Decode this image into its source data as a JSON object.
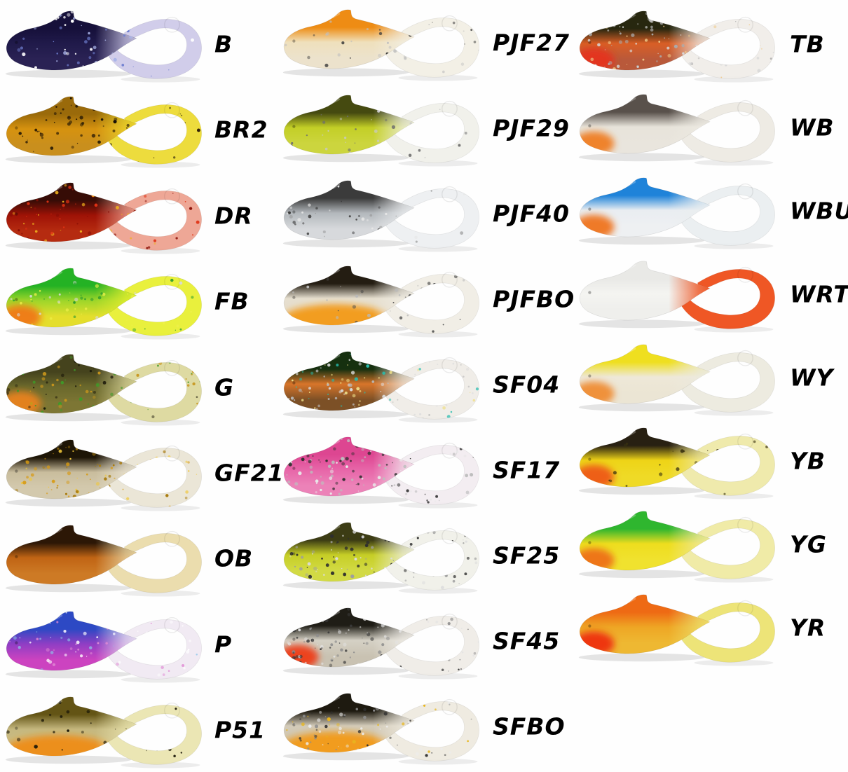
{
  "page": {
    "background": "#fefefe",
    "description": "Soft plastic curl-tail lure color chart"
  },
  "lures": [
    {
      "code": "B",
      "column": 1,
      "row": 0,
      "colors": {
        "back": "#16103a",
        "mid": "#201a4a",
        "belly": "#2a2254",
        "tail": "#cdc9e8"
      },
      "glitter": {
        "colors": [
          "#aab4e8",
          "#ffffff",
          "#6f7fd0"
        ],
        "body": 70,
        "tail": 40
      }
    },
    {
      "code": "BR2",
      "column": 1,
      "row": 1,
      "colors": {
        "back": "#9a6a0a",
        "mid": "#d6920f",
        "belly": "#c98f1d",
        "tail": "#ecd92e"
      },
      "glitter": {
        "colors": [
          "#2a1a06",
          "#171006"
        ],
        "body": 60,
        "tail": 18
      }
    },
    {
      "code": "DR",
      "column": 1,
      "row": 2,
      "colors": {
        "back": "#360c06",
        "mid": "#9e1206",
        "belly": "#b52b10",
        "tail": "#eda08e"
      },
      "glitter": {
        "colors": [
          "#e03214",
          "#efb31e",
          "#8a0f06"
        ],
        "body": 85,
        "tail": 55
      }
    },
    {
      "code": "FB",
      "column": 1,
      "row": 3,
      "colors": {
        "back": "#24b224",
        "mid": "#9ed62a",
        "belly": "#e4de2c",
        "tail": "#e7ef2e"
      },
      "patch": {
        "type": "chin",
        "color": "#ef7816"
      },
      "glitter": {
        "colors": [
          "#2f9e2f",
          "#d8d8d8",
          "#eef04a"
        ],
        "body": 70,
        "tail": 40
      }
    },
    {
      "code": "G",
      "column": 1,
      "row": 4,
      "colors": {
        "back": "#45431d",
        "mid": "#6a682c",
        "belly": "#7d7634",
        "tail": "#dcd79b"
      },
      "patch": {
        "type": "chin",
        "color": "#e8821c"
      },
      "glitter": {
        "colors": [
          "#3f9a28",
          "#c7951c",
          "#191608"
        ],
        "body": 95,
        "tail": 50
      }
    },
    {
      "code": "GF21",
      "column": 1,
      "row": 5,
      "colors": {
        "back": "#1d1506",
        "mid": "#c9bd9d",
        "belly": "#d3c9ad",
        "tail": "#eae4d4"
      },
      "glitter": {
        "colors": [
          "#d79a12",
          "#a87a0c",
          "#f0c73a"
        ],
        "body": 90,
        "tail": 45
      }
    },
    {
      "code": "OB",
      "column": 1,
      "row": 6,
      "colors": {
        "back": "#2c1706",
        "mid": "#c06414",
        "belly": "#cd7a25",
        "tail": "#e9daa8"
      },
      "glitter": {
        "colors": [],
        "body": 0,
        "tail": 0
      }
    },
    {
      "code": "P",
      "column": 1,
      "row": 7,
      "colors": {
        "back": "#2d49c4",
        "mid": "#8f3ec4",
        "belly": "#cc43c0",
        "tail": "#f0e8f2"
      },
      "glitter": {
        "colors": [
          "#e08ad4",
          "#8ec6ea",
          "#ffffff"
        ],
        "body": 60,
        "tail": 45
      }
    },
    {
      "code": "P51",
      "column": 1,
      "row": 8,
      "colors": {
        "back": "#635415",
        "mid": "#c5b87f",
        "belly": "#cdbd85",
        "tail": "#e9e4ae"
      },
      "patch": {
        "type": "belly",
        "color": "#ee8c16"
      },
      "glitter": {
        "colors": [
          "#1b1708"
        ],
        "body": 30,
        "tail": 16
      }
    },
    {
      "code": "PJF27",
      "column": 2,
      "row": 0,
      "colors": {
        "back": "#ee8c14",
        "mid": "#efe0bc",
        "belly": "#ece2cc",
        "tail": "#f2efe4"
      },
      "glitter": {
        "colors": [
          "#bfbfbf",
          "#3c3c3c"
        ],
        "body": 30,
        "tail": 20
      }
    },
    {
      "code": "PJF29",
      "column": 2,
      "row": 1,
      "colors": {
        "back": "#454a10",
        "mid": "#c3cf26",
        "belly": "#ccd53e",
        "tail": "#f0f0ea"
      },
      "glitter": {
        "colors": [
          "#c9c9c9",
          "#6e6e6e"
        ],
        "body": 40,
        "tail": 14
      }
    },
    {
      "code": "PJF40",
      "column": 2,
      "row": 2,
      "colors": {
        "back": "#3b3b3b",
        "mid": "#b3b8bc",
        "belly": "#d7d9dc",
        "tail": "#edeff1"
      },
      "glitter": {
        "colors": [
          "#8f8f8f",
          "#e6e6e6",
          "#3a3a3a"
        ],
        "body": 55,
        "tail": 30
      }
    },
    {
      "code": "PJFBO",
      "column": 2,
      "row": 3,
      "colors": {
        "back": "#241d12",
        "mid": "#e6dfcf",
        "belly": "#e6dccb",
        "tail": "#f0ede4"
      },
      "patch": {
        "type": "belly",
        "color": "#f29a14"
      },
      "glitter": {
        "colors": [
          "#b9b9b9",
          "#4a4a4a"
        ],
        "body": 35,
        "tail": 25
      }
    },
    {
      "code": "SF04",
      "column": 2,
      "row": 4,
      "colors": {
        "back": "#16300f",
        "mid": "#d8752a",
        "belly": "#7c5026",
        "tail": "#efece6"
      },
      "glitter": {
        "colors": [
          "#27bdae",
          "#dcdcdc",
          "#b9b9b9",
          "#efe08a"
        ],
        "body": 115,
        "tail": 70
      }
    },
    {
      "code": "SF17",
      "column": 2,
      "row": 5,
      "colors": {
        "back": "#dd4691",
        "mid": "#e765a8",
        "belly": "#ec82b8",
        "tail": "#f2ecf0"
      },
      "glitter": {
        "colors": [
          "#e8e8e8",
          "#bdbdbd",
          "#2e2e2e"
        ],
        "body": 115,
        "tail": 70
      }
    },
    {
      "code": "SF25",
      "column": 2,
      "row": 6,
      "colors": {
        "back": "#3c3c14",
        "mid": "#c6ce26",
        "belly": "#d2da44",
        "tail": "#f0f0e8"
      },
      "glitter": {
        "colors": [
          "#dcdcdc",
          "#9e9e9e",
          "#2e2e2e"
        ],
        "body": 100,
        "tail": 60
      }
    },
    {
      "code": "SF45",
      "column": 2,
      "row": 7,
      "colors": {
        "back": "#1f1d16",
        "mid": "#d5d1c5",
        "belly": "#c9c2b2",
        "tail": "#efece6"
      },
      "patch": {
        "type": "chin",
        "color": "#ee3b16"
      },
      "glitter": {
        "colors": [
          "#8c8c8c",
          "#3a3a3a",
          "#e3e3e3"
        ],
        "body": 110,
        "tail": 65
      }
    },
    {
      "code": "SFBO",
      "column": 2,
      "row": 8,
      "colors": {
        "back": "#1e1a10",
        "mid": "#d3cbb9",
        "belly": "#d0c5ae",
        "tail": "#eeeadf"
      },
      "patch": {
        "type": "belly",
        "color": "#f29a14"
      },
      "glitter": {
        "colors": [
          "#8c8c8c",
          "#2e2e2e",
          "#ececec",
          "#e8b61e"
        ],
        "body": 100,
        "tail": 60
      }
    },
    {
      "code": "TB",
      "column": 3,
      "row": 0,
      "colors": {
        "back": "#27270f",
        "mid": "#d95f26",
        "belly": "#b9593a",
        "tail": "#f0ede8"
      },
      "patch": {
        "type": "chin",
        "color": "#e5311c"
      },
      "glitter": {
        "colors": [
          "#d9d9d9",
          "#ababab",
          "#efc98a"
        ],
        "body": 90,
        "tail": 45
      }
    },
    {
      "code": "WB",
      "column": 3,
      "row": 1,
      "colors": {
        "back": "#59514b",
        "mid": "#e7e3da",
        "belly": "#e9e5dd",
        "tail": "#edeae2"
      },
      "patch": {
        "type": "chin",
        "color": "#ef7d23"
      },
      "glitter": {
        "colors": [],
        "body": 0,
        "tail": 0
      }
    },
    {
      "code": "WBU",
      "column": 3,
      "row": 2,
      "colors": {
        "back": "#1f83d9",
        "mid": "#e9edf1",
        "belly": "#eef0f2",
        "tail": "#eaeef0"
      },
      "patch": {
        "type": "chin",
        "color": "#ef7420"
      },
      "glitter": {
        "colors": [],
        "body": 0,
        "tail": 0
      }
    },
    {
      "code": "WRT",
      "column": 3,
      "row": 3,
      "colors": {
        "back": "#e9e9e6",
        "mid": "#f4f4f1",
        "belly": "#efefec",
        "tail": "#ee4a14"
      },
      "glitter": {
        "colors": [],
        "body": 0,
        "tail": 0
      }
    },
    {
      "code": "WY",
      "column": 3,
      "row": 4,
      "colors": {
        "back": "#efdf1f",
        "mid": "#eee8d8",
        "belly": "#ebe5d4",
        "tail": "#eceade"
      },
      "patch": {
        "type": "chin",
        "color": "#ef8c31"
      },
      "glitter": {
        "colors": [],
        "body": 0,
        "tail": 0
      }
    },
    {
      "code": "YB",
      "column": 3,
      "row": 5,
      "colors": {
        "back": "#282012",
        "mid": "#eed417",
        "belly": "#efda26",
        "tail": "#eee8a6"
      },
      "patch": {
        "type": "chin",
        "color": "#ee5a16"
      },
      "glitter": {
        "colors": [
          "#3a3210"
        ],
        "body": 14,
        "tail": 8
      }
    },
    {
      "code": "YG",
      "column": 3,
      "row": 6,
      "colors": {
        "back": "#2fb62f",
        "mid": "#eedd1e",
        "belly": "#f0e22e",
        "tail": "#efe9a0"
      },
      "patch": {
        "type": "chin",
        "color": "#ee7016"
      },
      "glitter": {
        "colors": [],
        "body": 0,
        "tail": 0
      }
    },
    {
      "code": "YR",
      "column": 3,
      "row": 7,
      "colors": {
        "back": "#ee6a14",
        "mid": "#eea624",
        "belly": "#eeb832",
        "tail": "#ece26e"
      },
      "patch": {
        "type": "chin",
        "color": "#ee2e0e"
      },
      "glitter": {
        "colors": [],
        "body": 0,
        "tail": 0
      }
    }
  ]
}
